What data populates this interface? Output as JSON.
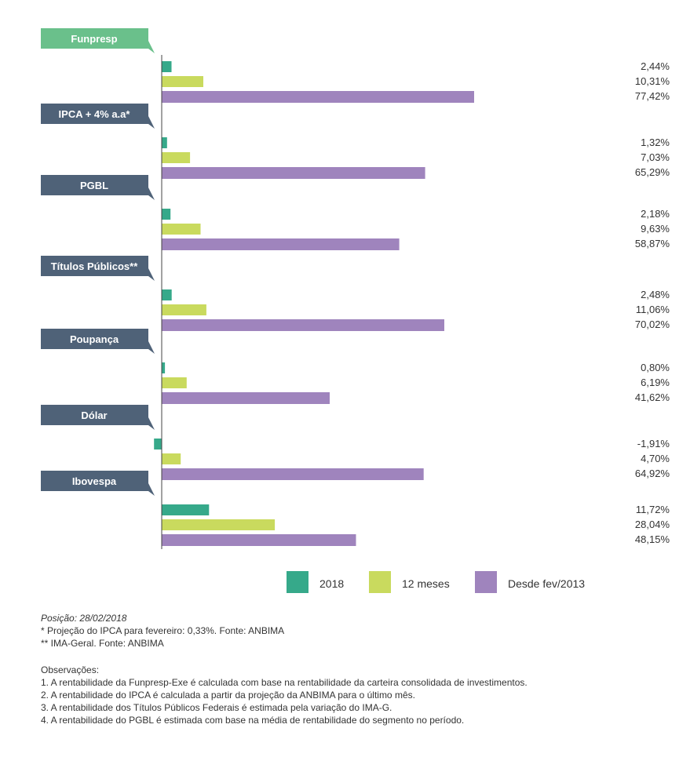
{
  "colors": {
    "s2018": "#36a98a",
    "s12m": "#c9da5e",
    "sDesde": "#9f84bd",
    "label_bg": "#4f6278",
    "label_bg_highlight": "#6ac08b",
    "axis": "#444444"
  },
  "chart_data": {
    "type": "bar",
    "orientation": "horizontal",
    "categories": [
      "Funpresp",
      "IPCA + 4% a.a*",
      "PGBL",
      "Títulos Públicos**",
      "Poupança",
      "Dólar",
      "Ibovespa"
    ],
    "series": [
      {
        "name": "2018",
        "values": [
          2.44,
          1.32,
          2.18,
          2.48,
          0.8,
          -1.91,
          11.72
        ]
      },
      {
        "name": "12 meses",
        "values": [
          10.31,
          7.03,
          9.63,
          11.06,
          6.19,
          4.7,
          28.04
        ]
      },
      {
        "name": "Desde fev/2013",
        "values": [
          77.42,
          65.29,
          58.87,
          70.02,
          41.62,
          64.92,
          48.15
        ]
      }
    ],
    "value_labels": [
      [
        "2,44%",
        "10,31%",
        "77,42%"
      ],
      [
        "1,32%",
        "7,03%",
        "65,29%"
      ],
      [
        "2,18%",
        "9,63%",
        "58,87%"
      ],
      [
        "2,48%",
        "11,06%",
        "70,02%"
      ],
      [
        "0,80%",
        "6,19%",
        "41,62%"
      ],
      [
        "-1,91%",
        "4,70%",
        "64,92%"
      ],
      [
        "11,72%",
        "28,04%",
        "48,15%"
      ]
    ],
    "highlight_category": "Funpresp",
    "xlim": [
      -2,
      80
    ],
    "grid": false,
    "legend_position": "bottom"
  },
  "legend": {
    "items": [
      {
        "label": "2018"
      },
      {
        "label": "12 meses"
      },
      {
        "label": "Desde fev/2013"
      }
    ]
  },
  "notes": {
    "posicao": "Posição: 28/02/2018",
    "footnote1": "* Projeção do IPCA para fevereiro: 0,33%. Fonte: ANBIMA",
    "footnote2": "** IMA-Geral. Fonte: ANBIMA",
    "obs_title": "Observações:",
    "obs": [
      "1. A rentabilidade da Funpresp-Exe é calculada com base na rentabilidade da carteira consolidada de investimentos.",
      "2. A rentabilidade do IPCA é calculada a partir da projeção da ANBIMA para o último mês.",
      "3. A rentabilidade dos Títulos Públicos Federais é estimada pela variação do IMA-G.",
      "4. A rentabilidade do PGBL é estimada com base na média de rentabilidade do segmento no período."
    ]
  }
}
